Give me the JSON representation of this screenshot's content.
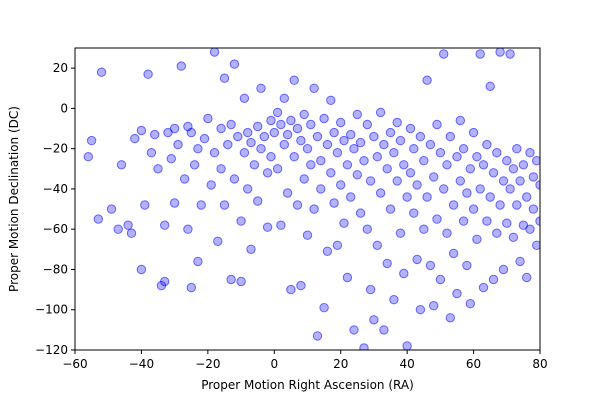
{
  "chart_data": {
    "type": "scatter",
    "title": "",
    "xlabel": "Proper Motion Right Ascension (RA)",
    "ylabel": "Proper Motion Declination (DC)",
    "xlim": [
      -60,
      80
    ],
    "ylim": [
      -120,
      30
    ],
    "xticks": [
      -60,
      -40,
      -20,
      0,
      20,
      40,
      60,
      80
    ],
    "yticks": [
      -120,
      -100,
      -80,
      -60,
      -40,
      -20,
      0,
      20
    ],
    "xtick_labels": [
      "−60",
      "−40",
      "−20",
      "0",
      "20",
      "40",
      "60",
      "80"
    ],
    "ytick_labels": [
      "−120",
      "−100",
      "−80",
      "−60",
      "−40",
      "−20",
      "0",
      "20"
    ],
    "grid": false,
    "legend": "none",
    "marker_color": "#0000ff",
    "marker_alpha": 0.3,
    "series": [
      {
        "points": [
          [
            -56,
            -24
          ],
          [
            -55,
            -16
          ],
          [
            -53,
            -55
          ],
          [
            -52,
            18
          ],
          [
            -49,
            -50
          ],
          [
            -47,
            -60
          ],
          [
            -46,
            -28
          ],
          [
            -44,
            -58
          ],
          [
            -43,
            -62
          ],
          [
            -42,
            -15
          ],
          [
            -40,
            -80
          ],
          [
            -40,
            -11
          ],
          [
            -39,
            -48
          ],
          [
            -38,
            17
          ],
          [
            -37,
            -22
          ],
          [
            -36,
            -13
          ],
          [
            -35,
            -30
          ],
          [
            -34,
            -88
          ],
          [
            -33,
            -86
          ],
          [
            -33,
            -58
          ],
          [
            -32,
            -12
          ],
          [
            -31,
            -25
          ],
          [
            -30,
            -10
          ],
          [
            -30,
            -47
          ],
          [
            -29,
            -18
          ],
          [
            -28,
            21
          ],
          [
            -27,
            -35
          ],
          [
            -26,
            -9
          ],
          [
            -26,
            -60
          ],
          [
            -25,
            -12
          ],
          [
            -25,
            -89
          ],
          [
            -24,
            -28
          ],
          [
            -23,
            -20
          ],
          [
            -23,
            -76
          ],
          [
            -22,
            -48
          ],
          [
            -21,
            -15
          ],
          [
            -20,
            -5
          ],
          [
            -19,
            -38
          ],
          [
            -18,
            28
          ],
          [
            -18,
            -22
          ],
          [
            -17,
            -66
          ],
          [
            -16,
            -10
          ],
          [
            -16,
            -30
          ],
          [
            -15,
            15
          ],
          [
            -15,
            -48
          ],
          [
            -14,
            -18
          ],
          [
            -13,
            -8
          ],
          [
            -13,
            -85
          ],
          [
            -12,
            22
          ],
          [
            -12,
            -35
          ],
          [
            -11,
            -14
          ],
          [
            -10,
            -56
          ],
          [
            -10,
            -86
          ],
          [
            -9,
            -22
          ],
          [
            -9,
            5
          ],
          [
            -8,
            -40
          ],
          [
            -8,
            -12
          ],
          [
            -7,
            -70
          ],
          [
            -7,
            -17
          ],
          [
            -6,
            -28
          ],
          [
            -5,
            -9
          ],
          [
            -5,
            -46
          ],
          [
            -4,
            -20
          ],
          [
            -4,
            10
          ],
          [
            -3,
            -14
          ],
          [
            -2,
            -32
          ],
          [
            -2,
            -59
          ],
          [
            -1,
            -6
          ],
          [
            -1,
            -24
          ],
          [
            0,
            -12
          ],
          [
            1,
            -2
          ],
          [
            1,
            -30
          ],
          [
            2,
            -8
          ],
          [
            2,
            -58
          ],
          [
            3,
            -18
          ],
          [
            3,
            5
          ],
          [
            4,
            -13
          ],
          [
            4,
            -42
          ],
          [
            5,
            -6
          ],
          [
            5,
            -90
          ],
          [
            6,
            -24
          ],
          [
            6,
            14
          ],
          [
            7,
            -10
          ],
          [
            7,
            -48
          ],
          [
            8,
            -16
          ],
          [
            8,
            -88
          ],
          [
            9,
            -3
          ],
          [
            9,
            -35
          ],
          [
            10,
            -20
          ],
          [
            10,
            -63
          ],
          [
            11,
            -8
          ],
          [
            11,
            -28
          ],
          [
            12,
            10
          ],
          [
            12,
            -50
          ],
          [
            13,
            -14
          ],
          [
            13,
            -113
          ],
          [
            14,
            -26
          ],
          [
            14,
            -40
          ],
          [
            15,
            -5
          ],
          [
            15,
            -99
          ],
          [
            16,
            -18
          ],
          [
            16,
            -71
          ],
          [
            17,
            -32
          ],
          [
            17,
            4
          ],
          [
            18,
            -12
          ],
          [
            18,
            -47
          ],
          [
            19,
            -22
          ],
          [
            19,
            -68
          ],
          [
            20,
            -38
          ],
          [
            20,
            -7
          ],
          [
            21,
            -16
          ],
          [
            21,
            -57
          ],
          [
            22,
            -28
          ],
          [
            22,
            -84
          ],
          [
            23,
            -44
          ],
          [
            23,
            -13
          ],
          [
            24,
            -20
          ],
          [
            24,
            -110
          ],
          [
            25,
            -33
          ],
          [
            25,
            -3
          ],
          [
            26,
            -52
          ],
          [
            26,
            -17
          ],
          [
            27,
            -26
          ],
          [
            27,
            -119
          ],
          [
            28,
            -8
          ],
          [
            28,
            -60
          ],
          [
            29,
            -36
          ],
          [
            29,
            -90
          ],
          [
            30,
            -14
          ],
          [
            30,
            -105
          ],
          [
            31,
            -24
          ],
          [
            31,
            -68
          ],
          [
            32,
            -42
          ],
          [
            32,
            -2
          ],
          [
            33,
            -18
          ],
          [
            33,
            -110
          ],
          [
            34,
            -30
          ],
          [
            34,
            -77
          ],
          [
            35,
            -12
          ],
          [
            35,
            -50
          ],
          [
            36,
            -22
          ],
          [
            36,
            -95
          ],
          [
            37,
            -36
          ],
          [
            37,
            -7
          ],
          [
            38,
            -16
          ],
          [
            38,
            -62
          ],
          [
            39,
            -28
          ],
          [
            39,
            -82
          ],
          [
            40,
            -44
          ],
          [
            40,
            -118
          ],
          [
            41,
            -10
          ],
          [
            41,
            -32
          ],
          [
            42,
            -52
          ],
          [
            42,
            -20
          ],
          [
            43,
            -75
          ],
          [
            43,
            -38
          ],
          [
            44,
            -14
          ],
          [
            44,
            -100
          ],
          [
            45,
            -26
          ],
          [
            45,
            -60
          ],
          [
            46,
            -44
          ],
          [
            46,
            14
          ],
          [
            47,
            -18
          ],
          [
            47,
            -78
          ],
          [
            48,
            -34
          ],
          [
            48,
            -98
          ],
          [
            49,
            -8
          ],
          [
            49,
            -55
          ],
          [
            50,
            -22
          ],
          [
            50,
            -85
          ],
          [
            51,
            -40
          ],
          [
            51,
            27
          ],
          [
            52,
            -28
          ],
          [
            52,
            -62
          ],
          [
            53,
            -14
          ],
          [
            53,
            -104
          ],
          [
            54,
            -48
          ],
          [
            54,
            -72
          ],
          [
            55,
            -24
          ],
          [
            55,
            -92
          ],
          [
            56,
            -36
          ],
          [
            56,
            -6
          ],
          [
            57,
            -56
          ],
          [
            57,
            -20
          ],
          [
            58,
            -78
          ],
          [
            58,
            -42
          ],
          [
            59,
            -30
          ],
          [
            59,
            -97
          ],
          [
            60,
            -50
          ],
          [
            60,
            -12
          ],
          [
            61,
            -65
          ],
          [
            61,
            -24
          ],
          [
            62,
            -40
          ],
          [
            62,
            27
          ],
          [
            63,
            -28
          ],
          [
            63,
            -89
          ],
          [
            64,
            -56
          ],
          [
            64,
            -18
          ],
          [
            65,
            -44
          ],
          [
            65,
            11
          ],
          [
            66,
            -32
          ],
          [
            66,
            -85
          ],
          [
            67,
            -62
          ],
          [
            67,
            -22
          ],
          [
            68,
            -48
          ],
          [
            68,
            28
          ],
          [
            69,
            -36
          ],
          [
            69,
            -80
          ],
          [
            70,
            -26
          ],
          [
            70,
            -57
          ],
          [
            71,
            -40
          ],
          [
            71,
            27
          ],
          [
            72,
            -30
          ],
          [
            72,
            -64
          ],
          [
            73,
            -20
          ],
          [
            73,
            -48
          ],
          [
            74,
            -76
          ],
          [
            74,
            -36
          ],
          [
            75,
            -58
          ],
          [
            75,
            -28
          ],
          [
            76,
            -44
          ],
          [
            76,
            -84
          ],
          [
            77,
            -22
          ],
          [
            77,
            -60
          ],
          [
            78,
            -34
          ],
          [
            78,
            -50
          ],
          [
            79,
            -26
          ],
          [
            79,
            -68
          ],
          [
            80,
            -38
          ],
          [
            80,
            -56
          ]
        ]
      }
    ]
  }
}
